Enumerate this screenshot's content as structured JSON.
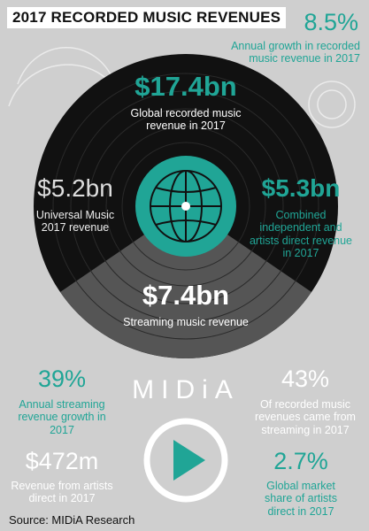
{
  "header": {
    "title": "2017 RECORDED MUSIC REVENUES"
  },
  "stats": [
    {
      "value": "8.5%",
      "label": "Annual growth in recorded music revenue in 2017"
    },
    {
      "value": "$17.4bn",
      "label": "Global recorded music revenue in 2017"
    },
    {
      "value": "$5.2bn",
      "label": "Universal Music 2017 revenue"
    },
    {
      "value": "$5.3bn",
      "label": "Combined independent and artists direct revenue in 2017"
    },
    {
      "value": "$7.4bn",
      "label": "Streaming music revenue"
    },
    {
      "value": "39%",
      "label": "Annual streaming revenue growth in 2017"
    },
    {
      "value": "43%",
      "label": "Of recorded music revenues came from streaming in 2017"
    },
    {
      "value": "$472m",
      "label": "Revenue from artists direct in 2017"
    },
    {
      "value": "2.7%",
      "label": "Global market share of artists direct in 2017"
    }
  ],
  "logo": "MIDiA",
  "footer": {
    "source": "Source: MIDiA Research"
  }
}
